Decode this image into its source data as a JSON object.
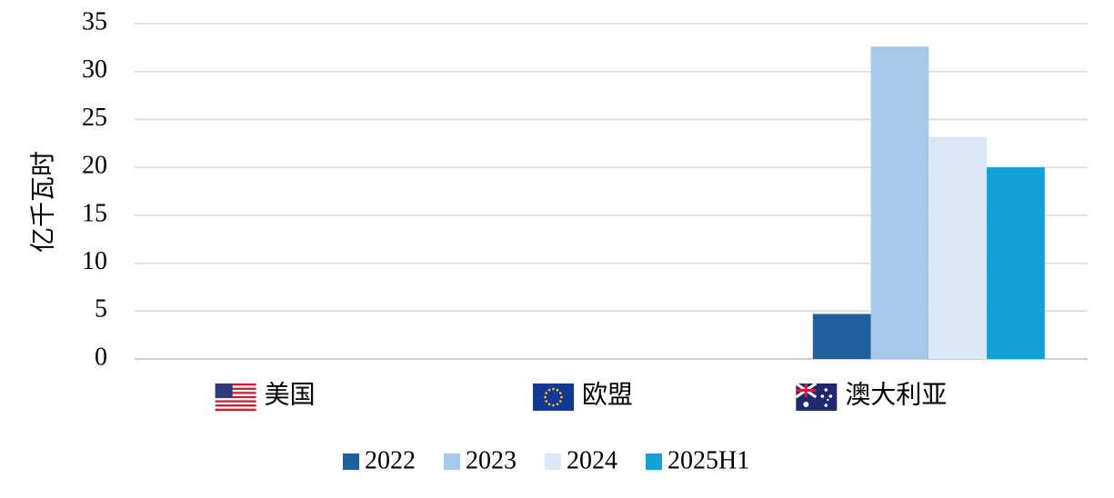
{
  "chart_data": {
    "type": "bar",
    "y_label": "亿千瓦时",
    "categories": [
      "美国",
      "欧盟",
      "澳大利亚"
    ],
    "series": [
      {
        "name": "2022",
        "color": "#20609e",
        "values": [
          null,
          null,
          4.7
        ]
      },
      {
        "name": "2023",
        "color": "#a8c8ea",
        "values": [
          null,
          null,
          32.6
        ]
      },
      {
        "name": "2024",
        "color": "#dce8f5",
        "values": [
          null,
          null,
          23.2
        ]
      },
      {
        "name": "2025H1",
        "color": "#12a0d6",
        "values": [
          null,
          null,
          20.0
        ]
      }
    ],
    "ylim": [
      0,
      35
    ],
    "yticks": [
      0,
      5,
      10,
      15,
      20,
      25,
      30,
      35
    ],
    "grid": true,
    "legend": "bottom"
  }
}
